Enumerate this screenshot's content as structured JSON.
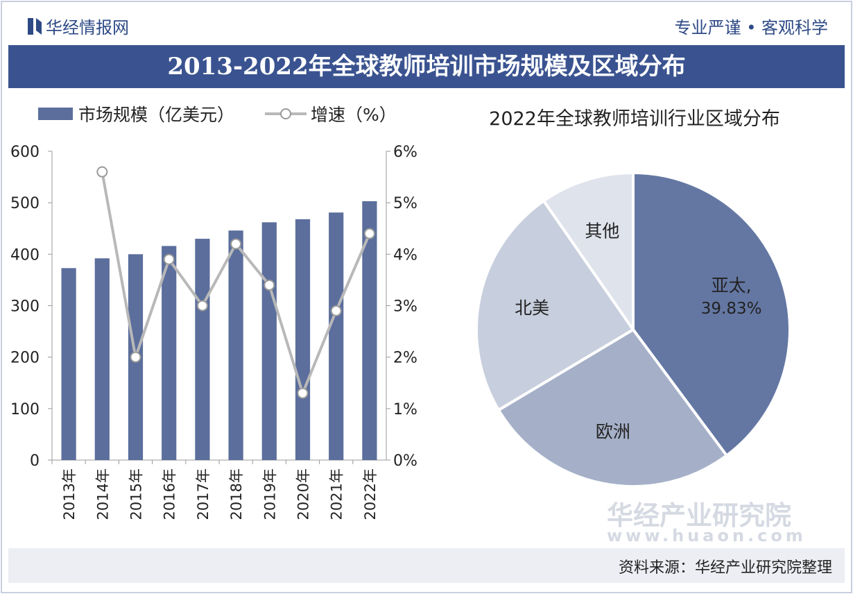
{
  "header": {
    "brand": "华经情报网",
    "slogan": "专业严谨 • 客观科学",
    "title": "2013-2022年全球教师培训市场规模及区域分布"
  },
  "footer": {
    "source": "资料来源：华经产业研究院整理",
    "watermark": "华经产业研究院",
    "watermark_url": "www.huaon.com"
  },
  "chart_data": [
    {
      "type": "bar_line",
      "categories": [
        "2013年",
        "2014年",
        "2015年",
        "2016年",
        "2017年",
        "2018年",
        "2019年",
        "2020年",
        "2021年",
        "2022年"
      ],
      "series": [
        {
          "name": "市场规模（亿美元）",
          "color": "#5b6e9c",
          "type": "bar",
          "values": [
            373,
            392,
            400,
            416,
            430,
            446,
            462,
            468,
            481,
            503
          ]
        },
        {
          "name": "增速（%）",
          "color": "#b8b8b8",
          "type": "line",
          "axis": "y2",
          "values": [
            null,
            5.6,
            2.0,
            3.9,
            3.0,
            4.2,
            3.4,
            1.3,
            2.9,
            4.4
          ]
        }
      ],
      "ylim": [
        0,
        600
      ],
      "yticks": [
        0,
        100,
        200,
        300,
        400,
        500,
        600
      ],
      "y2lim": [
        0,
        6
      ],
      "y2ticks": [
        {
          "value": 0,
          "label": "0%"
        },
        {
          "value": 1,
          "label": "1%"
        },
        {
          "value": 2,
          "label": "2%"
        },
        {
          "value": 3,
          "label": "3%"
        },
        {
          "value": 4,
          "label": "4%"
        },
        {
          "value": 5,
          "label": "5%"
        },
        {
          "value": 6,
          "label": "6%"
        }
      ],
      "legend": "top"
    },
    {
      "type": "pie",
      "title": "2022年全球教师培训行业区域分布",
      "categories": [
        "亚太,",
        "欧洲",
        "北美",
        "其他"
      ],
      "values": [
        39.83,
        26.6,
        23.9,
        9.67
      ],
      "value_labels": [
        "39.83%",
        null,
        null,
        null
      ],
      "colors": [
        "#6477a3",
        "#a5b0c8",
        "#c7cedd",
        "#dfe3ec"
      ]
    }
  ]
}
